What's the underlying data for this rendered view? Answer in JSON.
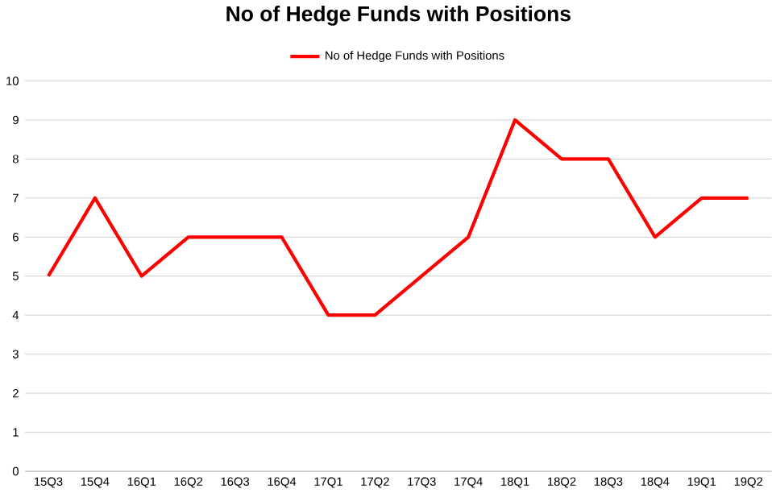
{
  "chart_data": {
    "type": "line",
    "title": "No of Hedge Funds with Positions",
    "categories": [
      "15Q3",
      "15Q4",
      "16Q1",
      "16Q2",
      "16Q3",
      "16Q4",
      "17Q1",
      "17Q2",
      "17Q3",
      "17Q4",
      "18Q1",
      "18Q2",
      "18Q3",
      "18Q4",
      "19Q1",
      "19Q2"
    ],
    "series": [
      {
        "name": "No of Hedge Funds with Positions",
        "color": "#ff0000",
        "values": [
          5,
          7,
          5,
          6,
          6,
          6,
          4,
          4,
          5,
          6,
          9,
          8,
          8,
          6,
          7,
          7
        ]
      }
    ],
    "ylim": [
      0,
      10
    ],
    "yticks": [
      0,
      1,
      2,
      3,
      4,
      5,
      6,
      7,
      8,
      9,
      10
    ],
    "grid": "y",
    "legend": "top",
    "marker": "none",
    "line_style": "solid"
  }
}
